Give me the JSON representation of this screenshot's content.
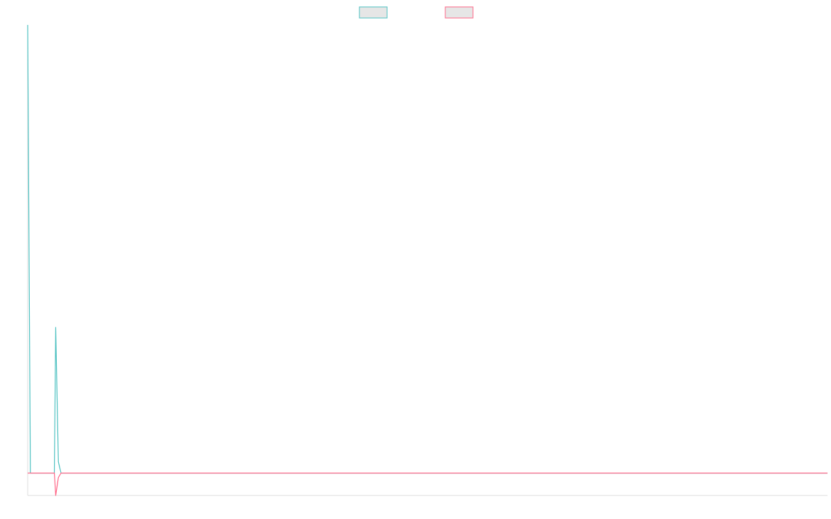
{
  "chart_data": {
    "type": "line",
    "title": "",
    "xlabel": "",
    "ylabel": "",
    "grid": false,
    "legend_position": "top-center",
    "x": [
      0,
      1,
      2,
      3,
      4,
      5,
      6,
      7,
      8,
      9,
      10,
      11,
      12,
      13,
      14,
      15,
      16,
      17,
      18,
      19,
      20,
      21,
      22,
      23,
      24,
      25,
      26,
      27,
      28,
      29,
      30
    ],
    "xlim": [
      0,
      30
    ],
    "ylim": [
      -1,
      20
    ],
    "series": [
      {
        "name": "",
        "color": "#4bc0c0",
        "values": [
          20,
          0,
          0,
          0,
          0,
          0,
          0,
          0,
          0,
          0,
          0,
          0,
          0,
          0,
          0,
          0,
          0,
          0,
          0,
          0,
          0,
          0,
          0,
          0,
          0,
          0,
          0,
          0,
          0,
          0,
          0
        ],
        "extra_points": [
          [
            0.1,
            0
          ],
          [
            1.0,
            0
          ],
          [
            1.05,
            6.5
          ],
          [
            1.15,
            0.5
          ],
          [
            1.25,
            0
          ]
        ]
      },
      {
        "name": "",
        "color": "#ff6384",
        "values": [
          0,
          0,
          0,
          0,
          0,
          0,
          0,
          0,
          0,
          0,
          0,
          0,
          0,
          0,
          0,
          0,
          0,
          0,
          0,
          0,
          0,
          0,
          0,
          0,
          0,
          0,
          0,
          0,
          0,
          0,
          0
        ],
        "extra_points": [
          [
            1.0,
            0
          ],
          [
            1.05,
            -1
          ],
          [
            1.15,
            -0.2
          ],
          [
            1.25,
            0
          ]
        ]
      }
    ]
  }
}
